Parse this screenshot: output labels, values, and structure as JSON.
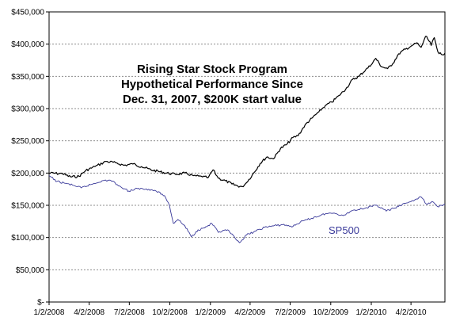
{
  "chart_data": {
    "type": "line",
    "title": [
      "Rising Star Stock Program",
      "Hypothetical Performance Since",
      "Dec. 31, 2007, $200K start value"
    ],
    "xlabel": "",
    "ylabel": "",
    "ylim": [
      0,
      450000
    ],
    "y_ticks": [
      0,
      50000,
      100000,
      150000,
      200000,
      250000,
      300000,
      350000,
      400000,
      450000
    ],
    "y_tick_labels": [
      "$-",
      "$50,000",
      "$100,000",
      "$150,000",
      "$200,000",
      "$250,000",
      "$300,000",
      "$350,000",
      "$400,000",
      "$450,000"
    ],
    "xlim": [
      "2008-01-02",
      "2010-06-18"
    ],
    "x_ticks": [
      "2008-01-02",
      "2008-04-02",
      "2008-07-02",
      "2008-10-02",
      "2009-01-02",
      "2009-04-02",
      "2009-07-02",
      "2009-10-02",
      "2010-01-02",
      "2010-04-02"
    ],
    "x_tick_labels": [
      "1/2/2008",
      "4/2/2008",
      "7/2/2008",
      "10/2/2008",
      "1/2/2009",
      "4/2/2009",
      "7/2/2009",
      "10/2/2009",
      "1/2/2010",
      "4/2/2010"
    ],
    "grid": {
      "horizontal": true,
      "vertical": false,
      "style": "dashed"
    },
    "legend": "none",
    "series": [
      {
        "label_on_chart": "",
        "color": "#000000",
        "points": [
          [
            "2008-01-02",
            200000
          ],
          [
            "2008-02-01",
            199000
          ],
          [
            "2008-02-20",
            194000
          ],
          [
            "2008-03-10",
            195000
          ],
          [
            "2008-03-25",
            204000
          ],
          [
            "2008-04-15",
            210000
          ],
          [
            "2008-05-10",
            218000
          ],
          [
            "2008-06-01",
            216000
          ],
          [
            "2008-06-20",
            212000
          ],
          [
            "2008-07-10",
            214000
          ],
          [
            "2008-07-30",
            210000
          ],
          [
            "2008-08-20",
            205000
          ],
          [
            "2008-09-10",
            202000
          ],
          [
            "2008-09-25",
            200000
          ],
          [
            "2008-10-15",
            198000
          ],
          [
            "2008-11-05",
            200000
          ],
          [
            "2008-11-25",
            196000
          ],
          [
            "2008-12-15",
            194000
          ],
          [
            "2008-12-28",
            193000
          ],
          [
            "2009-01-08",
            205000
          ],
          [
            "2009-01-20",
            192000
          ],
          [
            "2009-02-05",
            188000
          ],
          [
            "2009-02-20",
            183000
          ],
          [
            "2009-03-05",
            180000
          ],
          [
            "2009-03-15",
            179000
          ],
          [
            "2009-03-25",
            185000
          ],
          [
            "2009-04-10",
            200000
          ],
          [
            "2009-04-25",
            215000
          ],
          [
            "2009-05-10",
            225000
          ],
          [
            "2009-05-25",
            222000
          ],
          [
            "2009-06-10",
            238000
          ],
          [
            "2009-06-25",
            245000
          ],
          [
            "2009-07-08",
            255000
          ],
          [
            "2009-07-20",
            258000
          ],
          [
            "2009-08-05",
            275000
          ],
          [
            "2009-08-20",
            285000
          ],
          [
            "2009-09-05",
            295000
          ],
          [
            "2009-09-20",
            305000
          ],
          [
            "2009-10-05",
            310000
          ],
          [
            "2009-10-20",
            320000
          ],
          [
            "2009-11-05",
            330000
          ],
          [
            "2009-11-20",
            345000
          ],
          [
            "2009-12-05",
            350000
          ],
          [
            "2009-12-20",
            360000
          ],
          [
            "2010-01-02",
            368000
          ],
          [
            "2010-01-12",
            378000
          ],
          [
            "2010-01-25",
            365000
          ],
          [
            "2010-02-08",
            362000
          ],
          [
            "2010-02-20",
            370000
          ],
          [
            "2010-03-05",
            385000
          ],
          [
            "2010-03-20",
            392000
          ],
          [
            "2010-04-05",
            398000
          ],
          [
            "2010-04-15",
            402000
          ],
          [
            "2010-04-25",
            395000
          ],
          [
            "2010-05-05",
            412000
          ],
          [
            "2010-05-10",
            408000
          ],
          [
            "2010-05-18",
            398000
          ],
          [
            "2010-05-25",
            410000
          ],
          [
            "2010-06-02",
            388000
          ],
          [
            "2010-06-10",
            384000
          ],
          [
            "2010-06-18",
            386000
          ]
        ]
      },
      {
        "label_on_chart": "SP500",
        "color": "#3a3a9a",
        "points": [
          [
            "2008-01-02",
            196000
          ],
          [
            "2008-01-20",
            187000
          ],
          [
            "2008-02-10",
            184000
          ],
          [
            "2008-03-01",
            180000
          ],
          [
            "2008-03-15",
            177000
          ],
          [
            "2008-04-05",
            182000
          ],
          [
            "2008-05-01",
            188000
          ],
          [
            "2008-05-20",
            189000
          ],
          [
            "2008-06-10",
            180000
          ],
          [
            "2008-07-01",
            172000
          ],
          [
            "2008-07-20",
            176000
          ],
          [
            "2008-08-15",
            175000
          ],
          [
            "2008-09-01",
            172000
          ],
          [
            "2008-09-20",
            165000
          ],
          [
            "2008-10-01",
            150000
          ],
          [
            "2008-10-10",
            122000
          ],
          [
            "2008-10-20",
            128000
          ],
          [
            "2008-11-05",
            118000
          ],
          [
            "2008-11-20",
            101000
          ],
          [
            "2008-12-05",
            112000
          ],
          [
            "2008-12-20",
            115000
          ],
          [
            "2009-01-05",
            122000
          ],
          [
            "2009-01-20",
            108000
          ],
          [
            "2009-02-10",
            112000
          ],
          [
            "2009-02-28",
            98000
          ],
          [
            "2009-03-09",
            92000
          ],
          [
            "2009-03-25",
            104000
          ],
          [
            "2009-04-15",
            110000
          ],
          [
            "2009-05-05",
            116000
          ],
          [
            "2009-05-25",
            118000
          ],
          [
            "2009-06-15",
            120000
          ],
          [
            "2009-07-08",
            117000
          ],
          [
            "2009-07-25",
            124000
          ],
          [
            "2009-08-20",
            130000
          ],
          [
            "2009-09-20",
            137000
          ],
          [
            "2009-10-10",
            138000
          ],
          [
            "2009-10-30",
            134000
          ],
          [
            "2009-11-20",
            142000
          ],
          [
            "2009-12-20",
            146000
          ],
          [
            "2010-01-15",
            150000
          ],
          [
            "2010-02-05",
            141000
          ],
          [
            "2010-02-25",
            146000
          ],
          [
            "2010-03-20",
            153000
          ],
          [
            "2010-04-10",
            158000
          ],
          [
            "2010-04-25",
            163000
          ],
          [
            "2010-05-07",
            152000
          ],
          [
            "2010-05-20",
            156000
          ],
          [
            "2010-06-01",
            148000
          ],
          [
            "2010-06-10",
            150000
          ],
          [
            "2010-06-18",
            152000
          ]
        ]
      }
    ]
  }
}
